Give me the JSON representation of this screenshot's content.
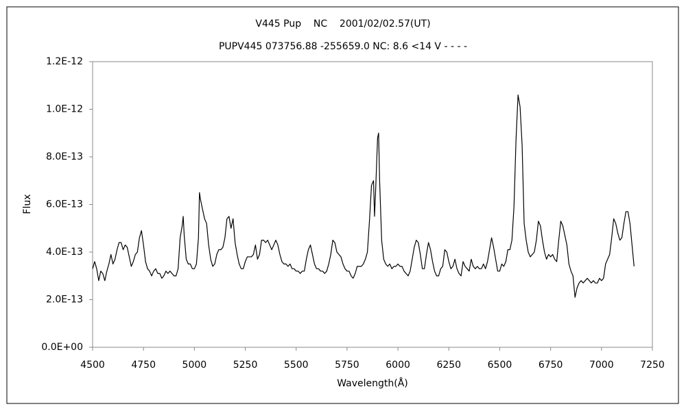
{
  "chart_data": {
    "type": "line",
    "title": "V445 Pup    NC    2001/02/02.57(UT)",
    "subtitle": "PUPV445 073756.88 -255659.0 NC: 8.6 <14 V - - - -",
    "x_label": "Wavelength(Å)",
    "y_label": "Flux",
    "color": "#000000",
    "xlim": [
      4500,
      7250
    ],
    "xticks": [
      4500,
      4750,
      5000,
      5250,
      5500,
      5750,
      6000,
      6250,
      6500,
      6750,
      7000,
      7250
    ],
    "ylim": [
      0,
      1.2e-12
    ],
    "yticks": [
      {
        "value": 0,
        "label": "0.0E+00"
      },
      {
        "value": 2e-13,
        "label": "2.0E-13"
      },
      {
        "value": 4e-13,
        "label": "4.0E-13"
      },
      {
        "value": 6e-13,
        "label": "6.0E-13"
      },
      {
        "value": 8e-13,
        "label": "8.0E-13"
      },
      {
        "value": 1e-12,
        "label": "1.0E-12"
      },
      {
        "value": 1.2e-12,
        "label": "1.2E-12"
      }
    ],
    "grid": false,
    "x": [
      4500,
      4510,
      4520,
      4530,
      4540,
      4550,
      4560,
      4570,
      4580,
      4590,
      4600,
      4610,
      4620,
      4630,
      4640,
      4650,
      4660,
      4670,
      4680,
      4690,
      4700,
      4710,
      4720,
      4730,
      4740,
      4750,
      4760,
      4770,
      4780,
      4790,
      4800,
      4810,
      4820,
      4830,
      4840,
      4850,
      4860,
      4870,
      4880,
      4890,
      4900,
      4910,
      4920,
      4930,
      4940,
      4945,
      4950,
      4960,
      4970,
      4980,
      4990,
      5000,
      5010,
      5020,
      5025,
      5030,
      5040,
      5050,
      5060,
      5070,
      5080,
      5090,
      5100,
      5110,
      5120,
      5130,
      5140,
      5150,
      5160,
      5170,
      5180,
      5190,
      5200,
      5210,
      5220,
      5230,
      5240,
      5250,
      5260,
      5270,
      5280,
      5290,
      5300,
      5310,
      5320,
      5330,
      5340,
      5350,
      5360,
      5370,
      5380,
      5390,
      5400,
      5410,
      5420,
      5430,
      5440,
      5450,
      5460,
      5470,
      5480,
      5490,
      5500,
      5510,
      5520,
      5530,
      5540,
      5550,
      5560,
      5570,
      5580,
      5590,
      5600,
      5610,
      5620,
      5630,
      5640,
      5650,
      5660,
      5670,
      5680,
      5690,
      5700,
      5710,
      5720,
      5730,
      5740,
      5750,
      5760,
      5770,
      5780,
      5790,
      5800,
      5810,
      5820,
      5830,
      5840,
      5850,
      5860,
      5870,
      5880,
      5885,
      5890,
      5900,
      5905,
      5910,
      5920,
      5930,
      5940,
      5950,
      5960,
      5970,
      5980,
      5990,
      6000,
      6010,
      6020,
      6030,
      6040,
      6050,
      6060,
      6070,
      6080,
      6090,
      6100,
      6110,
      6120,
      6130,
      6140,
      6150,
      6160,
      6170,
      6180,
      6190,
      6200,
      6210,
      6220,
      6230,
      6240,
      6250,
      6260,
      6270,
      6280,
      6290,
      6300,
      6310,
      6320,
      6330,
      6340,
      6350,
      6360,
      6370,
      6380,
      6390,
      6400,
      6410,
      6420,
      6430,
      6440,
      6450,
      6460,
      6470,
      6480,
      6490,
      6500,
      6510,
      6520,
      6530,
      6540,
      6550,
      6560,
      6570,
      6580,
      6590,
      6600,
      6610,
      6620,
      6630,
      6640,
      6650,
      6660,
      6670,
      6680,
      6690,
      6700,
      6710,
      6720,
      6730,
      6740,
      6750,
      6760,
      6770,
      6780,
      6790,
      6800,
      6810,
      6820,
      6830,
      6840,
      6850,
      6860,
      6870,
      6880,
      6890,
      6900,
      6910,
      6920,
      6930,
      6940,
      6950,
      6960,
      6970,
      6980,
      6990,
      7000,
      7010,
      7020,
      7030,
      7040,
      7050,
      7060,
      7070,
      7080,
      7090,
      7100,
      7110,
      7120,
      7130,
      7140,
      7150,
      7160
    ],
    "values": [
      3.3e-13,
      3.6e-13,
      3.3e-13,
      2.8e-13,
      3.2e-13,
      3.1e-13,
      2.8e-13,
      3.2e-13,
      3.5e-13,
      3.9e-13,
      3.5e-13,
      3.7e-13,
      4.1e-13,
      4.4e-13,
      4.4e-13,
      4.1e-13,
      4.3e-13,
      4.2e-13,
      3.8e-13,
      3.4e-13,
      3.6e-13,
      3.9e-13,
      4e-13,
      4.6e-13,
      4.9e-13,
      4.3e-13,
      3.6e-13,
      3.3e-13,
      3.2e-13,
      3e-13,
      3.2e-13,
      3.3e-13,
      3.1e-13,
      3.1e-13,
      2.9e-13,
      3e-13,
      3.2e-13,
      3.1e-13,
      3.2e-13,
      3.1e-13,
      3e-13,
      3e-13,
      3.3e-13,
      4.6e-13,
      5.1e-13,
      5.5e-13,
      4.7e-13,
      3.7e-13,
      3.5e-13,
      3.5e-13,
      3.3e-13,
      3.3e-13,
      3.5e-13,
      4.6e-13,
      6.5e-13,
      6.2e-13,
      5.8e-13,
      5.4e-13,
      5.2e-13,
      4.3e-13,
      3.7e-13,
      3.4e-13,
      3.5e-13,
      3.9e-13,
      4.1e-13,
      4.1e-13,
      4.2e-13,
      4.6e-13,
      5.4e-13,
      5.5e-13,
      5e-13,
      5.4e-13,
      4.4e-13,
      3.9e-13,
      3.5e-13,
      3.3e-13,
      3.3e-13,
      3.6e-13,
      3.8e-13,
      3.8e-13,
      3.8e-13,
      3.9e-13,
      4.3e-13,
      3.7e-13,
      3.9e-13,
      4.5e-13,
      4.5e-13,
      4.4e-13,
      4.5e-13,
      4.3e-13,
      4.1e-13,
      4.3e-13,
      4.5e-13,
      4.3e-13,
      3.9e-13,
      3.6e-13,
      3.5e-13,
      3.5e-13,
      3.4e-13,
      3.5e-13,
      3.3e-13,
      3.3e-13,
      3.2e-13,
      3.2e-13,
      3.1e-13,
      3.2e-13,
      3.2e-13,
      3.7e-13,
      4.1e-13,
      4.3e-13,
      3.9e-13,
      3.5e-13,
      3.3e-13,
      3.3e-13,
      3.2e-13,
      3.2e-13,
      3.1e-13,
      3.2e-13,
      3.5e-13,
      3.9e-13,
      4.5e-13,
      4.4e-13,
      4e-13,
      3.9e-13,
      3.8e-13,
      3.5e-13,
      3.3e-13,
      3.2e-13,
      3.2e-13,
      3e-13,
      2.9e-13,
      3.1e-13,
      3.4e-13,
      3.4e-13,
      3.4e-13,
      3.5e-13,
      3.7e-13,
      4e-13,
      5.3e-13,
      6.8e-13,
      7e-13,
      5.5e-13,
      6.5e-13,
      8.8e-13,
      9e-13,
      7e-13,
      4.5e-13,
      3.7e-13,
      3.5e-13,
      3.4e-13,
      3.5e-13,
      3.3e-13,
      3.4e-13,
      3.4e-13,
      3.5e-13,
      3.4e-13,
      3.4e-13,
      3.2e-13,
      3.1e-13,
      3e-13,
      3.2e-13,
      3.7e-13,
      4.2e-13,
      4.5e-13,
      4.4e-13,
      3.9e-13,
      3.3e-13,
      3.3e-13,
      3.9e-13,
      4.4e-13,
      4.1e-13,
      3.6e-13,
      3.2e-13,
      3e-13,
      3e-13,
      3.3e-13,
      3.4e-13,
      4.1e-13,
      4e-13,
      3.6e-13,
      3.3e-13,
      3.4e-13,
      3.7e-13,
      3.3e-13,
      3.1e-13,
      3e-13,
      3.6e-13,
      3.4e-13,
      3.3e-13,
      3.2e-13,
      3.7e-13,
      3.4e-13,
      3.3e-13,
      3.4e-13,
      3.3e-13,
      3.3e-13,
      3.5e-13,
      3.3e-13,
      3.6e-13,
      4.1e-13,
      4.6e-13,
      4.2e-13,
      3.7e-13,
      3.2e-13,
      3.2e-13,
      3.5e-13,
      3.4e-13,
      3.6e-13,
      4.1e-13,
      4.1e-13,
      4.5e-13,
      5.9e-13,
      8.7e-13,
      1.06e-12,
      1.01e-12,
      8.5e-13,
      5.2e-13,
      4.5e-13,
      4e-13,
      3.8e-13,
      3.9e-13,
      4e-13,
      4.5e-13,
      5.3e-13,
      5.1e-13,
      4.5e-13,
      4e-13,
      3.7e-13,
      3.9e-13,
      3.8e-13,
      3.9e-13,
      3.7e-13,
      3.6e-13,
      4.5e-13,
      5.3e-13,
      5.1e-13,
      4.7e-13,
      4.3e-13,
      3.5e-13,
      3.2e-13,
      3e-13,
      2.1e-13,
      2.5e-13,
      2.7e-13,
      2.8e-13,
      2.7e-13,
      2.8e-13,
      2.9e-13,
      2.8e-13,
      2.7e-13,
      2.8e-13,
      2.7e-13,
      2.7e-13,
      2.9e-13,
      2.8e-13,
      2.9e-13,
      3.5e-13,
      3.7e-13,
      3.9e-13,
      4.6e-13,
      5.4e-13,
      5.2e-13,
      4.8e-13,
      4.5e-13,
      4.6e-13,
      5.2e-13,
      5.7e-13,
      5.7e-13,
      5.2e-13,
      4.3e-13,
      3.4e-13
    ]
  }
}
